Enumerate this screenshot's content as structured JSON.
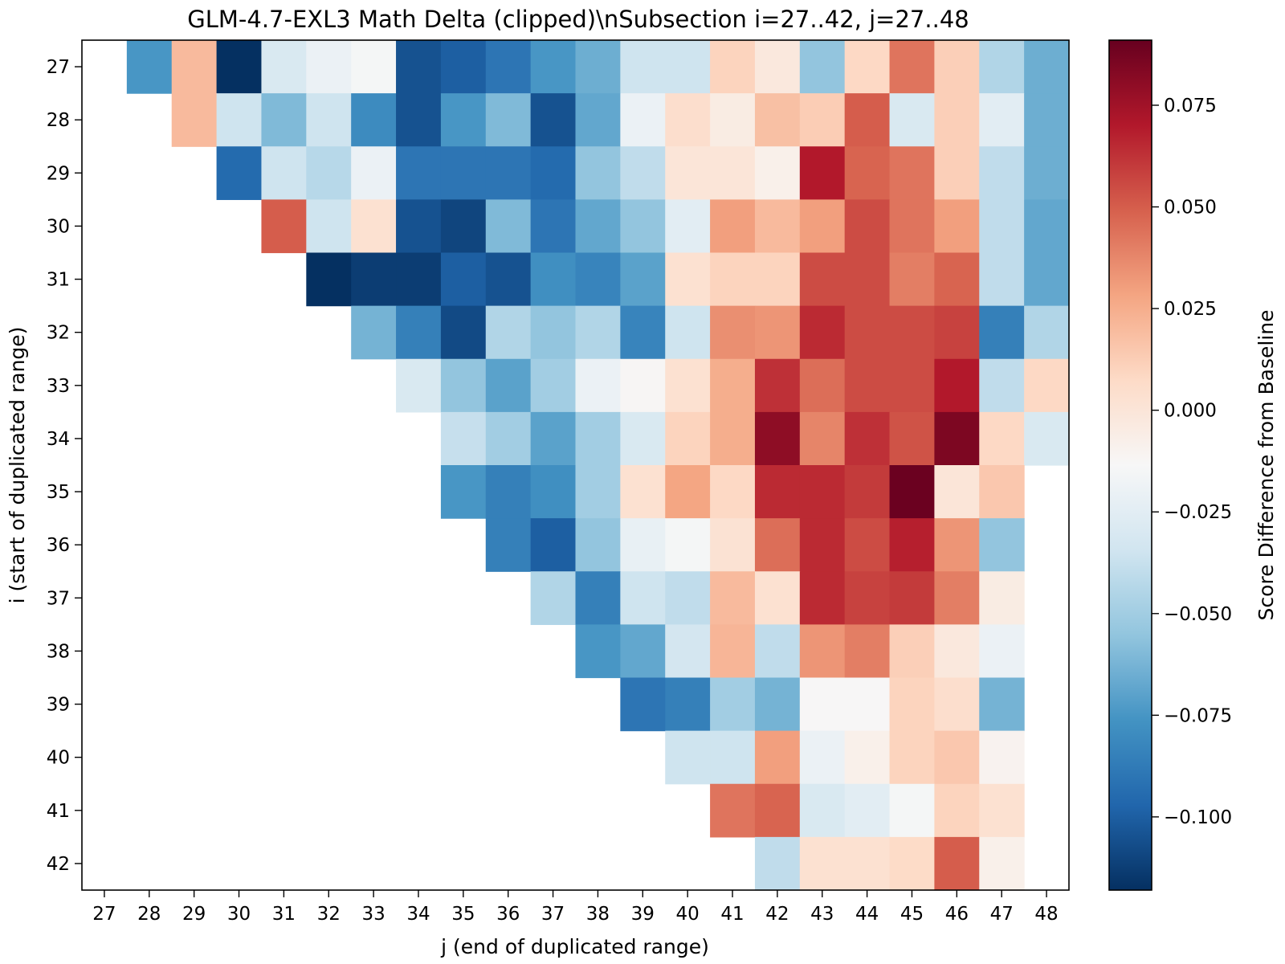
{
  "chart_data": {
    "type": "heatmap",
    "title": "GLM-4.7-EXL3 Math Delta (clipped)\\nSubsection i=27..42, j=27..48",
    "xlabel": "j (end of duplicated range)",
    "ylabel": "i (start of duplicated range)",
    "x": [
      27,
      28,
      29,
      30,
      31,
      32,
      33,
      34,
      35,
      36,
      37,
      38,
      39,
      40,
      41,
      42,
      43,
      44,
      45,
      46,
      47,
      48
    ],
    "y": [
      27,
      28,
      29,
      30,
      31,
      32,
      33,
      34,
      35,
      36,
      37,
      38,
      39,
      40,
      41,
      42
    ],
    "x_tick_labels": [
      "27",
      "28",
      "29",
      "30",
      "31",
      "32",
      "33",
      "34",
      "35",
      "36",
      "37",
      "38",
      "39",
      "40",
      "41",
      "42",
      "43",
      "44",
      "45",
      "46",
      "47",
      "48"
    ],
    "y_tick_labels": [
      "27",
      "28",
      "29",
      "30",
      "31",
      "32",
      "33",
      "34",
      "35",
      "36",
      "37",
      "38",
      "39",
      "40",
      "41",
      "42"
    ],
    "colorbar": {
      "label": "Score Difference from Baseline",
      "colormap": "RdBu_r",
      "vmin": -0.118,
      "vmax": 0.091,
      "ticks": [
        -0.1,
        -0.075,
        -0.05,
        -0.025,
        0.0,
        0.025,
        0.05,
        0.075
      ],
      "tick_labels": [
        "−0.100",
        "−0.075",
        "−0.050",
        "−0.025",
        "0.000",
        "0.025",
        "0.050",
        "0.075"
      ]
    },
    "values": [
      [
        null,
        -0.075,
        0.02,
        -0.118,
        -0.03,
        -0.02,
        -0.015,
        -0.105,
        -0.1,
        -0.09,
        -0.075,
        -0.065,
        -0.035,
        -0.035,
        0.01,
        -0.002,
        -0.055,
        0.008,
        0.043,
        0.012,
        -0.045,
        -0.065
      ],
      [
        null,
        null,
        0.02,
        -0.035,
        -0.06,
        -0.035,
        -0.08,
        -0.105,
        -0.075,
        -0.06,
        -0.105,
        -0.068,
        -0.02,
        0.005,
        -0.005,
        0.018,
        0.013,
        0.05,
        -0.03,
        0.012,
        -0.025,
        -0.065
      ],
      [
        null,
        null,
        null,
        -0.095,
        -0.035,
        -0.043,
        -0.02,
        -0.09,
        -0.09,
        -0.09,
        -0.095,
        -0.055,
        -0.04,
        0.0,
        0.0,
        -0.008,
        0.07,
        0.048,
        0.043,
        0.012,
        -0.04,
        -0.065
      ],
      [
        null,
        null,
        null,
        null,
        0.05,
        -0.035,
        0.003,
        -0.105,
        -0.11,
        -0.06,
        -0.09,
        -0.068,
        -0.055,
        -0.025,
        0.03,
        0.02,
        0.03,
        0.055,
        0.043,
        0.03,
        -0.04,
        -0.068
      ],
      [
        null,
        null,
        null,
        null,
        null,
        -0.118,
        -0.113,
        -0.113,
        -0.1,
        -0.105,
        -0.078,
        -0.083,
        -0.07,
        0.003,
        0.01,
        0.01,
        0.055,
        0.055,
        0.04,
        0.048,
        -0.04,
        -0.068
      ],
      [
        null,
        null,
        null,
        null,
        null,
        null,
        -0.063,
        -0.085,
        -0.108,
        -0.045,
        -0.055,
        -0.045,
        -0.083,
        -0.035,
        0.035,
        0.033,
        0.065,
        0.055,
        0.055,
        0.058,
        -0.085,
        -0.045
      ],
      [
        null,
        null,
        null,
        null,
        null,
        null,
        null,
        -0.03,
        -0.055,
        -0.07,
        -0.05,
        -0.02,
        -0.012,
        0.003,
        0.025,
        0.063,
        0.045,
        0.055,
        0.055,
        0.07,
        -0.04,
        0.008
      ],
      [
        null,
        null,
        null,
        null,
        null,
        null,
        null,
        null,
        -0.038,
        -0.05,
        -0.07,
        -0.05,
        -0.03,
        0.01,
        0.025,
        0.08,
        0.038,
        0.063,
        0.053,
        0.085,
        0.008,
        -0.03
      ],
      [
        null,
        null,
        null,
        null,
        null,
        null,
        null,
        null,
        -0.075,
        -0.085,
        -0.078,
        -0.05,
        0.003,
        0.028,
        0.008,
        0.065,
        0.065,
        0.06,
        0.09,
        0.0,
        0.015,
        null
      ],
      [
        null,
        null,
        null,
        null,
        null,
        null,
        null,
        null,
        null,
        -0.085,
        -0.1,
        -0.055,
        -0.022,
        -0.015,
        0.002,
        0.045,
        0.065,
        0.055,
        0.068,
        0.033,
        -0.055,
        null
      ],
      [
        null,
        null,
        null,
        null,
        null,
        null,
        null,
        null,
        null,
        null,
        -0.045,
        -0.085,
        -0.035,
        -0.04,
        0.02,
        0.003,
        0.065,
        0.058,
        0.06,
        0.04,
        -0.005,
        null
      ],
      [
        null,
        null,
        null,
        null,
        null,
        null,
        null,
        null,
        null,
        null,
        null,
        -0.075,
        -0.068,
        -0.033,
        0.022,
        -0.04,
        0.033,
        0.04,
        0.012,
        -0.002,
        -0.02,
        null
      ],
      [
        null,
        null,
        null,
        null,
        null,
        null,
        null,
        null,
        null,
        null,
        null,
        null,
        -0.09,
        -0.085,
        -0.05,
        -0.063,
        -0.013,
        -0.013,
        0.01,
        0.005,
        -0.063,
        null
      ],
      [
        null,
        null,
        null,
        null,
        null,
        null,
        null,
        null,
        null,
        null,
        null,
        null,
        null,
        -0.035,
        -0.035,
        0.03,
        -0.02,
        -0.008,
        0.01,
        0.015,
        -0.01,
        null
      ],
      [
        null,
        null,
        null,
        null,
        null,
        null,
        null,
        null,
        null,
        null,
        null,
        null,
        null,
        null,
        0.043,
        0.048,
        -0.03,
        -0.025,
        -0.015,
        0.01,
        0.003,
        null
      ],
      [
        null,
        null,
        null,
        null,
        null,
        null,
        null,
        null,
        null,
        null,
        null,
        null,
        null,
        null,
        null,
        -0.04,
        0.003,
        0.003,
        0.007,
        0.05,
        -0.008,
        null
      ]
    ]
  }
}
